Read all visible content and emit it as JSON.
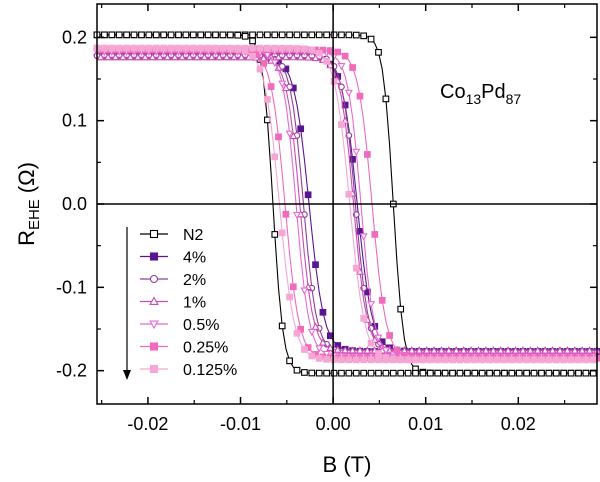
{
  "chart_data": {
    "type": "line",
    "xlabel": "B (T)",
    "ylabel_main": "R",
    "ylabel_sub": "EHE",
    "ylabel_unit": "(Ω)",
    "xlim": [
      -0.0255,
      0.0285
    ],
    "ylim": [
      -0.24,
      0.24
    ],
    "x_ticks": [
      -0.02,
      -0.01,
      0.0,
      0.01,
      0.02
    ],
    "x_tick_labels": [
      "-0.02",
      "-0.01",
      "0.00",
      "0.01",
      "0.02"
    ],
    "y_ticks": [
      -0.2,
      -0.1,
      0.0,
      0.1,
      0.2
    ],
    "y_tick_labels": [
      "-0.2",
      "-0.1",
      "0.0",
      "0.1",
      "0.2"
    ],
    "grid": false,
    "legend_position": "bottom-left",
    "annotation_main": "Co",
    "annotation_sub1": "13",
    "annotation_mid": "Pd",
    "annotation_sub2": "87",
    "series": [
      {
        "name": "N2",
        "color": "#000000",
        "marker": "square-open",
        "saturation": 0.203,
        "hc_up": 0.0065,
        "hc_down": -0.0065,
        "width": 0.0011
      },
      {
        "name": "4%",
        "color": "#5b1591",
        "marker": "square-filled",
        "saturation": 0.177,
        "hc_up": 0.0026,
        "hc_down": -0.0026,
        "width": 0.0016
      },
      {
        "name": "2%",
        "color": "#8e3d9c",
        "marker": "circle-open",
        "saturation": 0.178,
        "hc_up": 0.0024,
        "hc_down": -0.0032,
        "width": 0.0014
      },
      {
        "name": "1%",
        "color": "#c94bb3",
        "marker": "triangle-up-open",
        "saturation": 0.176,
        "hc_up": 0.0022,
        "hc_down": -0.0036,
        "width": 0.0014
      },
      {
        "name": "0.5%",
        "color": "#e56ad2",
        "marker": "triangle-down-open",
        "saturation": 0.183,
        "hc_up": 0.003,
        "hc_down": -0.004,
        "width": 0.0014
      },
      {
        "name": "0.25%",
        "color": "#f06bbb",
        "marker": "square-filled",
        "saturation": 0.185,
        "hc_up": 0.0042,
        "hc_down": -0.0052,
        "width": 0.0015
      },
      {
        "name": "0.125%",
        "color": "#f6a6d5",
        "marker": "square-filled",
        "saturation": 0.187,
        "hc_up": 0.0018,
        "hc_down": -0.0058,
        "width": 0.0016
      }
    ]
  }
}
